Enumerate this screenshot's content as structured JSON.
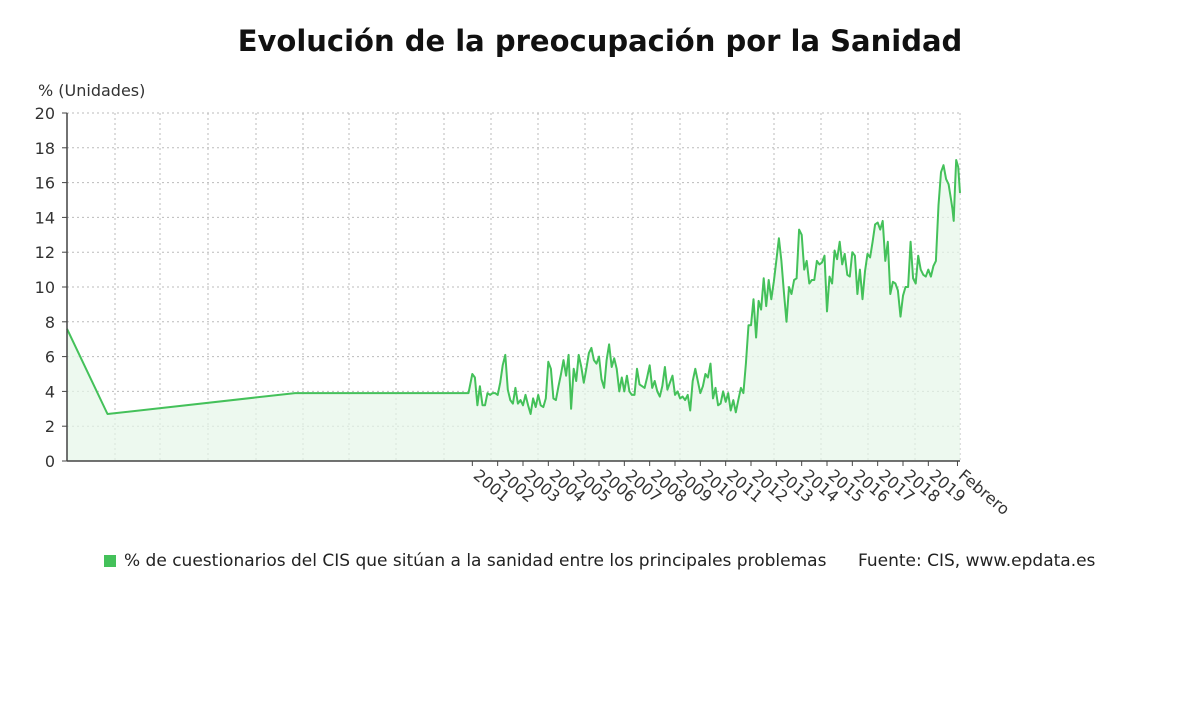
{
  "colors": {
    "line": "#44c15a",
    "fill": "#e6f6e8",
    "grid": "#bbbbbb",
    "axis": "#444444"
  },
  "chart_data": {
    "type": "area",
    "title": "Evolución de la preocupación por la Sanidad",
    "ylabel": "% (Unidades)",
    "xlabel": "",
    "ylim": [
      0,
      20
    ],
    "yticks": [
      0,
      2,
      4,
      6,
      8,
      10,
      12,
      14,
      16,
      18,
      20
    ],
    "xlim": [
      1985.0,
      2020.25
    ],
    "xtick_labels": [
      "2001",
      "2002",
      "2003",
      "2004",
      "2005",
      "2006",
      "2007",
      "2008",
      "2009",
      "2010",
      "2011",
      "2012",
      "2013",
      "2014",
      "2015",
      "2016",
      "2017",
      "2018",
      "2019",
      "Febrero"
    ],
    "xtick_values": [
      2001,
      2002,
      2003,
      2004,
      2005,
      2006,
      2007,
      2008,
      2009,
      2010,
      2011,
      2012,
      2013,
      2014,
      2015,
      2016,
      2017,
      2018,
      2019,
      2020.15
    ],
    "grid": true,
    "legend_position": "bottom",
    "series": [
      {
        "name": "% de cuestionarios del CIS que sitúan a la sanidad entre los principales problemas",
        "points": [
          [
            1985.0,
            7.6
          ],
          [
            1986.6,
            2.7
          ],
          [
            1994.0,
            3.9
          ],
          [
            2000.85,
            3.9
          ],
          [
            2001.0,
            5.0
          ],
          [
            2001.1,
            4.8
          ],
          [
            2001.2,
            3.2
          ],
          [
            2001.3,
            4.3
          ],
          [
            2001.4,
            3.2
          ],
          [
            2001.5,
            3.2
          ],
          [
            2001.6,
            3.9
          ],
          [
            2001.7,
            3.8
          ],
          [
            2001.8,
            3.9
          ],
          [
            2001.9,
            3.9
          ],
          [
            2002.0,
            3.8
          ],
          [
            2002.1,
            4.5
          ],
          [
            2002.2,
            5.5
          ],
          [
            2002.3,
            6.1
          ],
          [
            2002.4,
            4.1
          ],
          [
            2002.5,
            3.5
          ],
          [
            2002.6,
            3.3
          ],
          [
            2002.7,
            4.2
          ],
          [
            2002.8,
            3.3
          ],
          [
            2002.9,
            3.5
          ],
          [
            2003.0,
            3.2
          ],
          [
            2003.1,
            3.8
          ],
          [
            2003.2,
            3.2
          ],
          [
            2003.3,
            2.7
          ],
          [
            2003.4,
            3.6
          ],
          [
            2003.5,
            3.1
          ],
          [
            2003.6,
            3.8
          ],
          [
            2003.7,
            3.2
          ],
          [
            2003.8,
            3.1
          ],
          [
            2003.9,
            3.6
          ],
          [
            2004.0,
            5.7
          ],
          [
            2004.1,
            5.3
          ],
          [
            2004.2,
            3.6
          ],
          [
            2004.3,
            3.5
          ],
          [
            2004.4,
            4.3
          ],
          [
            2004.5,
            5.0
          ],
          [
            2004.6,
            5.8
          ],
          [
            2004.7,
            4.9
          ],
          [
            2004.8,
            6.1
          ],
          [
            2004.9,
            3.0
          ],
          [
            2005.0,
            5.3
          ],
          [
            2005.1,
            4.6
          ],
          [
            2005.2,
            6.1
          ],
          [
            2005.3,
            5.4
          ],
          [
            2005.4,
            4.5
          ],
          [
            2005.5,
            5.3
          ],
          [
            2005.6,
            6.2
          ],
          [
            2005.7,
            6.5
          ],
          [
            2005.8,
            5.8
          ],
          [
            2005.9,
            5.6
          ],
          [
            2006.0,
            6.0
          ],
          [
            2006.1,
            4.7
          ],
          [
            2006.2,
            4.2
          ],
          [
            2006.3,
            5.8
          ],
          [
            2006.4,
            6.7
          ],
          [
            2006.5,
            5.4
          ],
          [
            2006.6,
            5.9
          ],
          [
            2006.7,
            5.3
          ],
          [
            2006.8,
            4.0
          ],
          [
            2006.9,
            4.8
          ],
          [
            2007.0,
            4.0
          ],
          [
            2007.1,
            4.9
          ],
          [
            2007.2,
            4.0
          ],
          [
            2007.3,
            3.8
          ],
          [
            2007.4,
            3.8
          ],
          [
            2007.5,
            5.3
          ],
          [
            2007.6,
            4.4
          ],
          [
            2007.7,
            4.3
          ],
          [
            2007.8,
            4.2
          ],
          [
            2007.9,
            4.8
          ],
          [
            2008.0,
            5.5
          ],
          [
            2008.1,
            4.2
          ],
          [
            2008.2,
            4.6
          ],
          [
            2008.3,
            4.0
          ],
          [
            2008.4,
            3.7
          ],
          [
            2008.5,
            4.3
          ],
          [
            2008.6,
            5.4
          ],
          [
            2008.7,
            4.1
          ],
          [
            2008.8,
            4.5
          ],
          [
            2008.9,
            4.9
          ],
          [
            2009.0,
            3.8
          ],
          [
            2009.1,
            4.0
          ],
          [
            2009.2,
            3.6
          ],
          [
            2009.3,
            3.7
          ],
          [
            2009.4,
            3.5
          ],
          [
            2009.5,
            3.8
          ],
          [
            2009.6,
            2.9
          ],
          [
            2009.7,
            4.6
          ],
          [
            2009.8,
            5.3
          ],
          [
            2009.9,
            4.6
          ],
          [
            2010.0,
            3.9
          ],
          [
            2010.1,
            4.3
          ],
          [
            2010.2,
            5.0
          ],
          [
            2010.3,
            4.8
          ],
          [
            2010.4,
            5.6
          ],
          [
            2010.5,
            3.6
          ],
          [
            2010.6,
            4.2
          ],
          [
            2010.7,
            3.2
          ],
          [
            2010.8,
            3.3
          ],
          [
            2010.9,
            4.0
          ],
          [
            2011.0,
            3.4
          ],
          [
            2011.1,
            3.9
          ],
          [
            2011.2,
            2.9
          ],
          [
            2011.3,
            3.5
          ],
          [
            2011.4,
            2.8
          ],
          [
            2011.5,
            3.5
          ],
          [
            2011.6,
            4.2
          ],
          [
            2011.7,
            3.9
          ],
          [
            2011.8,
            5.6
          ],
          [
            2011.9,
            7.8
          ],
          [
            2012.0,
            7.8
          ],
          [
            2012.1,
            9.3
          ],
          [
            2012.2,
            7.1
          ],
          [
            2012.3,
            9.2
          ],
          [
            2012.4,
            8.7
          ],
          [
            2012.5,
            10.5
          ],
          [
            2012.6,
            8.9
          ],
          [
            2012.7,
            10.4
          ],
          [
            2012.8,
            9.3
          ],
          [
            2012.9,
            10.3
          ],
          [
            2013.0,
            11.5
          ],
          [
            2013.1,
            12.8
          ],
          [
            2013.2,
            11.5
          ],
          [
            2013.3,
            9.7
          ],
          [
            2013.4,
            8.0
          ],
          [
            2013.5,
            10.0
          ],
          [
            2013.6,
            9.6
          ],
          [
            2013.7,
            10.4
          ],
          [
            2013.8,
            10.5
          ],
          [
            2013.9,
            13.3
          ],
          [
            2014.0,
            13.0
          ],
          [
            2014.1,
            11.0
          ],
          [
            2014.2,
            11.5
          ],
          [
            2014.3,
            10.2
          ],
          [
            2014.4,
            10.4
          ],
          [
            2014.5,
            10.4
          ],
          [
            2014.6,
            11.5
          ],
          [
            2014.7,
            11.3
          ],
          [
            2014.8,
            11.4
          ],
          [
            2014.9,
            11.8
          ],
          [
            2015.0,
            8.6
          ],
          [
            2015.1,
            10.6
          ],
          [
            2015.2,
            10.2
          ],
          [
            2015.3,
            12.1
          ],
          [
            2015.4,
            11.6
          ],
          [
            2015.5,
            12.6
          ],
          [
            2015.6,
            11.3
          ],
          [
            2015.7,
            11.9
          ],
          [
            2015.8,
            10.7
          ],
          [
            2015.9,
            10.6
          ],
          [
            2016.0,
            12.0
          ],
          [
            2016.1,
            11.8
          ],
          [
            2016.2,
            9.6
          ],
          [
            2016.3,
            11.0
          ],
          [
            2016.4,
            9.3
          ],
          [
            2016.5,
            10.9
          ],
          [
            2016.6,
            11.9
          ],
          [
            2016.7,
            11.7
          ],
          [
            2016.8,
            12.6
          ],
          [
            2016.9,
            13.6
          ],
          [
            2017.0,
            13.7
          ],
          [
            2017.1,
            13.3
          ],
          [
            2017.2,
            13.8
          ],
          [
            2017.3,
            11.5
          ],
          [
            2017.4,
            12.6
          ],
          [
            2017.5,
            9.6
          ],
          [
            2017.6,
            10.3
          ],
          [
            2017.7,
            10.2
          ],
          [
            2017.8,
            9.8
          ],
          [
            2017.9,
            8.3
          ],
          [
            2018.0,
            9.5
          ],
          [
            2018.1,
            10.0
          ],
          [
            2018.2,
            10.0
          ],
          [
            2018.3,
            12.6
          ],
          [
            2018.4,
            10.5
          ],
          [
            2018.5,
            10.2
          ],
          [
            2018.6,
            11.8
          ],
          [
            2018.7,
            11.0
          ],
          [
            2018.8,
            10.7
          ],
          [
            2018.9,
            10.6
          ],
          [
            2019.0,
            11.0
          ],
          [
            2019.1,
            10.6
          ],
          [
            2019.2,
            11.2
          ],
          [
            2019.3,
            11.5
          ],
          [
            2019.4,
            14.7
          ],
          [
            2019.5,
            16.6
          ],
          [
            2019.6,
            17.0
          ],
          [
            2019.7,
            16.2
          ],
          [
            2019.8,
            15.9
          ],
          [
            2019.9,
            15.0
          ],
          [
            2019.95,
            14.5
          ],
          [
            2020.0,
            13.8
          ],
          [
            2020.05,
            15.6
          ],
          [
            2020.1,
            17.3
          ],
          [
            2020.18,
            16.9
          ],
          [
            2020.25,
            15.4
          ]
        ]
      }
    ],
    "source": "Fuente: CIS, www.epdata.es"
  }
}
